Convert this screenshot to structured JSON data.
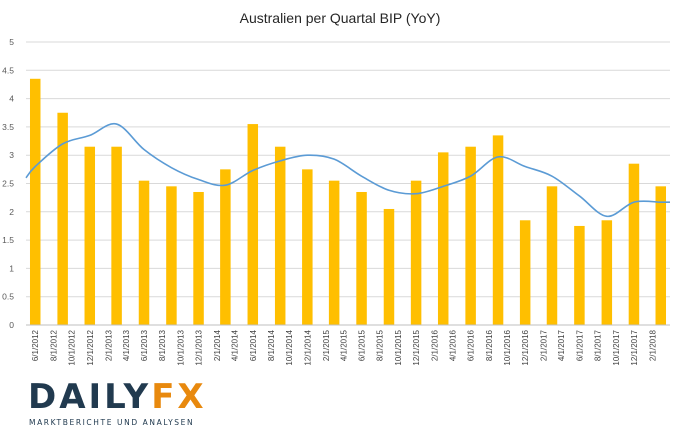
{
  "chart_data": {
    "type": "bar",
    "title": "Australien per Quartal BIP (YoY)",
    "xlabel": "",
    "ylabel": "",
    "ylim": [
      0,
      5
    ],
    "yticks": [
      "0",
      "0.5",
      "1",
      "1.5",
      "2",
      "2.5",
      "3",
      "3.5",
      "4",
      "4.5",
      "5"
    ],
    "grid": true,
    "categories": [
      "6/1/2012",
      "8/1/2012",
      "10/1/2012",
      "12/1/2012",
      "2/1/2013",
      "4/1/2013",
      "6/1/2013",
      "8/1/2013",
      "10/1/2013",
      "12/1/2013",
      "2/1/2014",
      "4/1/2014",
      "6/1/2014",
      "8/1/2014",
      "10/1/2014",
      "12/1/2014",
      "2/1/2015",
      "4/1/2015",
      "6/1/2015",
      "8/1/2015",
      "10/1/2015",
      "12/1/2015",
      "2/1/2016",
      "4/1/2016",
      "6/1/2016",
      "8/1/2016",
      "10/1/2016",
      "12/1/2016",
      "2/1/2017",
      "4/1/2017",
      "6/1/2017",
      "8/1/2017",
      "10/1/2017",
      "12/1/2017",
      "2/1/2018"
    ],
    "bars": [
      {
        "x": "6/1/2012",
        "value": 4.35
      },
      {
        "x": "9/1/2012",
        "value": 3.75
      },
      {
        "x": "12/1/2012",
        "value": 3.15
      },
      {
        "x": "3/1/2013",
        "value": 3.15
      },
      {
        "x": "6/1/2013",
        "value": 2.55
      },
      {
        "x": "9/1/2013",
        "value": 2.45
      },
      {
        "x": "12/1/2013",
        "value": 2.35
      },
      {
        "x": "3/1/2014",
        "value": 2.75
      },
      {
        "x": "6/1/2014",
        "value": 3.55
      },
      {
        "x": "9/1/2014",
        "value": 3.15
      },
      {
        "x": "12/1/2014",
        "value": 2.75
      },
      {
        "x": "3/1/2015",
        "value": 2.55
      },
      {
        "x": "6/1/2015",
        "value": 2.35
      },
      {
        "x": "9/1/2015",
        "value": 2.05
      },
      {
        "x": "12/1/2015",
        "value": 2.55
      },
      {
        "x": "3/1/2016",
        "value": 3.05
      },
      {
        "x": "6/1/2016",
        "value": 3.15
      },
      {
        "x": "9/1/2016",
        "value": 3.35
      },
      {
        "x": "12/1/2016",
        "value": 1.85
      },
      {
        "x": "3/1/2017",
        "value": 2.45
      },
      {
        "x": "6/1/2017",
        "value": 1.75
      },
      {
        "x": "9/1/2017",
        "value": 1.85
      },
      {
        "x": "12/1/2017",
        "value": 2.85
      },
      {
        "x": "3/1/2018",
        "value": 2.45
      }
    ],
    "line": [
      {
        "x": "5/1/2012",
        "value": 2.6
      },
      {
        "x": "6/1/2012",
        "value": 2.8
      },
      {
        "x": "9/1/2012",
        "value": 3.2
      },
      {
        "x": "12/1/2012",
        "value": 3.35
      },
      {
        "x": "3/1/2013",
        "value": 3.55
      },
      {
        "x": "6/1/2013",
        "value": 3.1
      },
      {
        "x": "9/1/2013",
        "value": 2.78
      },
      {
        "x": "12/1/2013",
        "value": 2.57
      },
      {
        "x": "3/1/2014",
        "value": 2.47
      },
      {
        "x": "6/1/2014",
        "value": 2.73
      },
      {
        "x": "9/1/2014",
        "value": 2.9
      },
      {
        "x": "12/1/2014",
        "value": 3.0
      },
      {
        "x": "3/1/2015",
        "value": 2.93
      },
      {
        "x": "6/1/2015",
        "value": 2.63
      },
      {
        "x": "9/1/2015",
        "value": 2.38
      },
      {
        "x": "12/1/2015",
        "value": 2.32
      },
      {
        "x": "3/1/2016",
        "value": 2.45
      },
      {
        "x": "6/1/2016",
        "value": 2.63
      },
      {
        "x": "9/1/2016",
        "value": 2.97
      },
      {
        "x": "12/1/2016",
        "value": 2.8
      },
      {
        "x": "3/1/2017",
        "value": 2.63
      },
      {
        "x": "6/1/2017",
        "value": 2.28
      },
      {
        "x": "9/1/2017",
        "value": 1.92
      },
      {
        "x": "12/1/2017",
        "value": 2.17
      },
      {
        "x": "3/1/2018",
        "value": 2.17
      },
      {
        "x": "4/1/2018",
        "value": 2.17
      }
    ],
    "colors": {
      "bar": "#ffbf00",
      "line": "#5b9bd5",
      "grid": "#d9d9d9"
    }
  },
  "logo": {
    "word_main": "DAILY",
    "word_accent": "FX",
    "tagline": "MARKTBERICHTE UND ANALYSEN"
  }
}
